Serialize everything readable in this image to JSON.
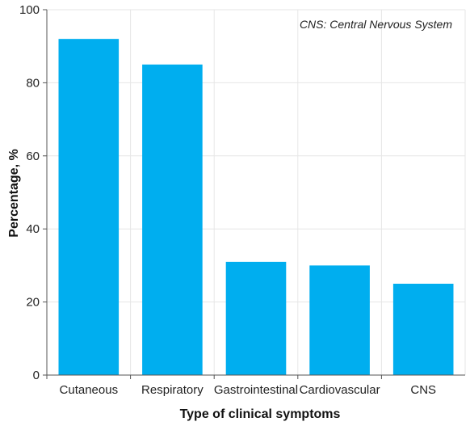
{
  "chart_data": {
    "type": "bar",
    "categories": [
      "Cutaneous",
      "Respiratory",
      "Gastrointestinal",
      "Cardiovascular",
      "CNS"
    ],
    "values": [
      92,
      85,
      31,
      30,
      25
    ],
    "xlabel": "Type of clinical symptoms",
    "ylabel": "Percentage, %",
    "ylim": [
      0,
      100
    ],
    "yticks": [
      0,
      20,
      40,
      60,
      80,
      100
    ],
    "annotation": "CNS: Central Nervous System",
    "grid": true,
    "bar_color": "#00aeef",
    "grid_color": "#e6e6e6",
    "axis_color": "#555555"
  }
}
